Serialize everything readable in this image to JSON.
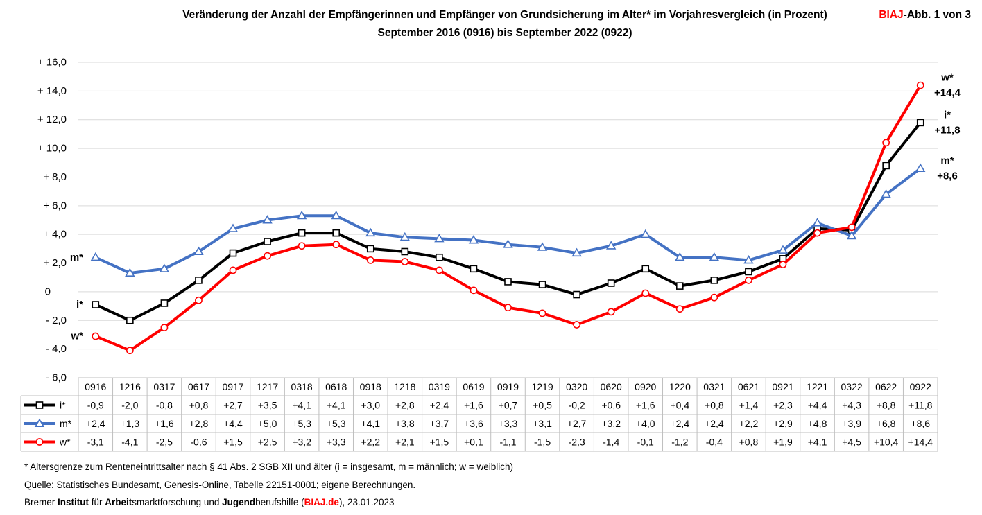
{
  "header": {
    "badge_brand": "BIAJ",
    "badge_rest": "-Abb. 1 von 3"
  },
  "chart_data": {
    "type": "line",
    "title": "Veränderung der Anzahl der Empfängerinnen und Empfänger von Grundsicherung im Alter* im Vorjahresvergleich (in Prozent)",
    "subtitle": "September 2016 (0916) bis September 2022 (0922)",
    "categories": [
      "0916",
      "1216",
      "0317",
      "0617",
      "0917",
      "1217",
      "0318",
      "0618",
      "0918",
      "1218",
      "0319",
      "0619",
      "0919",
      "1219",
      "0320",
      "0620",
      "0920",
      "1220",
      "0321",
      "0621",
      "0921",
      "1221",
      "0322",
      "0622",
      "0922"
    ],
    "ylim": [
      -6,
      16
    ],
    "yticks": [
      16,
      14,
      12,
      10,
      8,
      6,
      4,
      2,
      0,
      -2,
      -4,
      -6
    ],
    "ytick_labels": [
      "+ 16,0",
      "+ 14,0",
      "+ 12,0",
      "+ 10,0",
      "+ 8,0",
      "+ 6,0",
      "+ 4,0",
      "+ 2,0",
      "0",
      "- 2,0",
      "- 4,0",
      "- 6,0"
    ],
    "grid": true,
    "legend": "bottom-left",
    "data_table": true,
    "series": [
      {
        "name": "i*",
        "color": "#000000",
        "marker": "square",
        "values": [
          -0.9,
          -2.0,
          -0.8,
          0.8,
          2.7,
          3.5,
          4.1,
          4.1,
          3.0,
          2.8,
          2.4,
          1.6,
          0.7,
          0.5,
          -0.2,
          0.6,
          1.6,
          0.4,
          0.8,
          1.4,
          2.3,
          4.4,
          4.3,
          8.8,
          11.8
        ],
        "labels": [
          "-0,9",
          "-2,0",
          "-0,8",
          "+0,8",
          "+2,7",
          "+3,5",
          "+4,1",
          "+4,1",
          "+3,0",
          "+2,8",
          "+2,4",
          "+1,6",
          "+0,7",
          "+0,5",
          "-0,2",
          "+0,6",
          "+1,6",
          "+0,4",
          "+0,8",
          "+1,4",
          "+2,3",
          "+4,4",
          "+4,3",
          "+8,8",
          "+11,8"
        ]
      },
      {
        "name": "m*",
        "color": "#4472C4",
        "marker": "triangle",
        "values": [
          2.4,
          1.3,
          1.6,
          2.8,
          4.4,
          5.0,
          5.3,
          5.3,
          4.1,
          3.8,
          3.7,
          3.6,
          3.3,
          3.1,
          2.7,
          3.2,
          4.0,
          2.4,
          2.4,
          2.2,
          2.9,
          4.8,
          3.9,
          6.8,
          8.6
        ],
        "labels": [
          "+2,4",
          "+1,3",
          "+1,6",
          "+2,8",
          "+4,4",
          "+5,0",
          "+5,3",
          "+5,3",
          "+4,1",
          "+3,8",
          "+3,7",
          "+3,6",
          "+3,3",
          "+3,1",
          "+2,7",
          "+3,2",
          "+4,0",
          "+2,4",
          "+2,4",
          "+2,2",
          "+2,9",
          "+4,8",
          "+3,9",
          "+6,8",
          "+8,6"
        ]
      },
      {
        "name": "w*",
        "color": "#FF0000",
        "marker": "circle",
        "values": [
          -3.1,
          -4.1,
          -2.5,
          -0.6,
          1.5,
          2.5,
          3.2,
          3.3,
          2.2,
          2.1,
          1.5,
          0.1,
          -1.1,
          -1.5,
          -2.3,
          -1.4,
          -0.1,
          -1.2,
          -0.4,
          0.8,
          1.9,
          4.1,
          4.5,
          10.4,
          14.4
        ],
        "labels": [
          "-3,1",
          "-4,1",
          "-2,5",
          "-0,6",
          "+1,5",
          "+2,5",
          "+3,2",
          "+3,3",
          "+2,2",
          "+2,1",
          "+1,5",
          "+0,1",
          "-1,1",
          "-1,5",
          "-2,3",
          "-1,4",
          "-0,1",
          "-1,2",
          "-0,4",
          "+0,8",
          "+1,9",
          "+4,1",
          "+4,5",
          "+10,4",
          "+14,4"
        ]
      }
    ]
  },
  "footer": {
    "note": "* Altersgrenze zum Renteneintrittsalter nach § 41 Abs. 2 SGB XII und älter (i = insgesamt, m = männlich; w = weiblich)",
    "source": "Quelle: Statistisches Bundesamt, Genesis-Online, Tabelle 22151-0001; eigene Berechnungen.",
    "credit_parts": [
      "Bremer ",
      "Institut",
      " für ",
      "Arbeit",
      "smarktforschung und ",
      "Jugend",
      "berufshilfe (",
      "BIAJ.de",
      "), 23.01.2023"
    ]
  }
}
